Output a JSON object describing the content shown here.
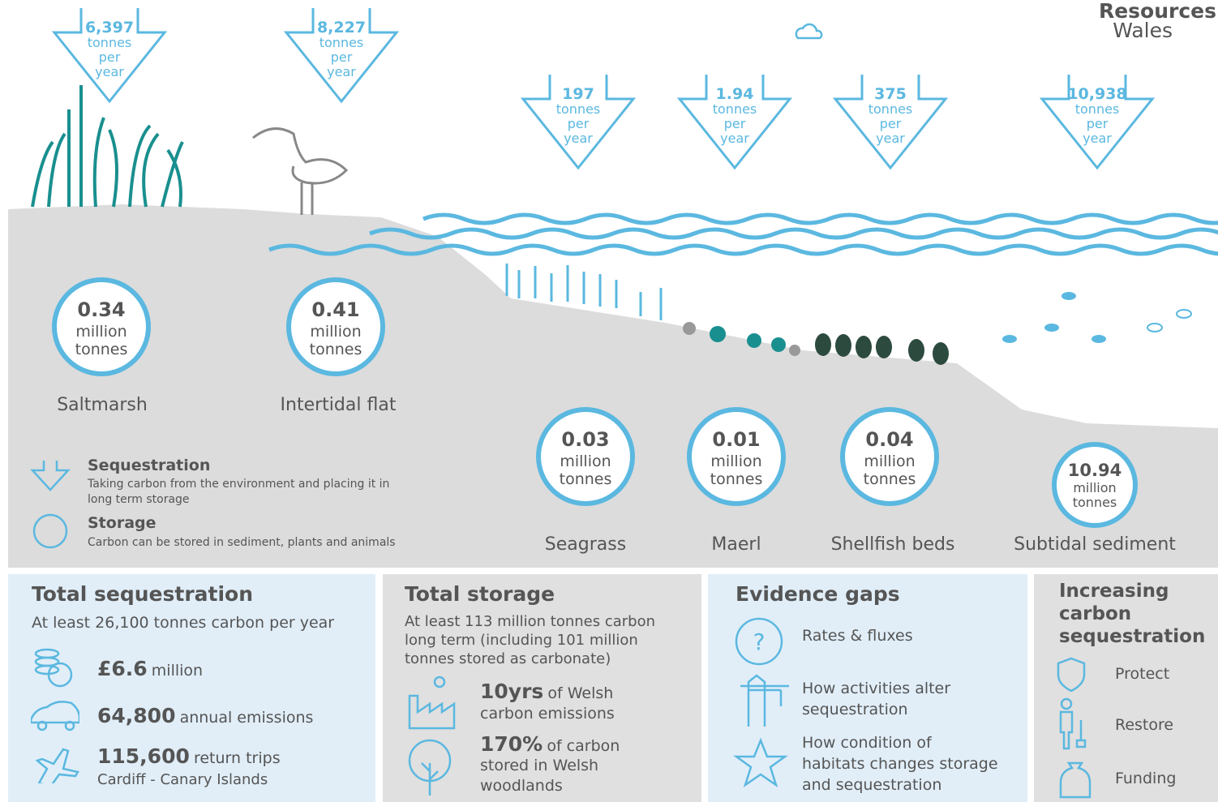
{
  "brand": {
    "line1": "Resources",
    "line2": "Wales"
  },
  "habitats": [
    {
      "name": "Saltmarsh",
      "sequestration": {
        "value": "6,397",
        "unit": [
          "tonnes",
          "per",
          "year"
        ]
      },
      "storage": {
        "value": "0.34",
        "unit": [
          "million",
          "tonnes"
        ]
      }
    },
    {
      "name": "Intertidal flat",
      "sequestration": {
        "value": "8,227",
        "unit": [
          "tonnes",
          "per",
          "year"
        ]
      },
      "storage": {
        "value": "0.41",
        "unit": [
          "million",
          "tonnes"
        ]
      }
    },
    {
      "name": "Seagrass",
      "sequestration": {
        "value": "197",
        "unit": [
          "tonnes",
          "per",
          "year"
        ]
      },
      "storage": {
        "value": "0.03",
        "unit": [
          "million",
          "tonnes"
        ]
      }
    },
    {
      "name": "Maerl",
      "sequestration": {
        "value": "1.94",
        "unit": [
          "tonnes",
          "per",
          "year"
        ]
      },
      "storage": {
        "value": "0.01",
        "unit": [
          "million",
          "tonnes"
        ]
      }
    },
    {
      "name": "Shellfish beds",
      "sequestration": {
        "value": "375",
        "unit": [
          "tonnes",
          "per",
          "year"
        ]
      },
      "storage": {
        "value": "0.04",
        "unit": [
          "million",
          "tonnes"
        ]
      }
    },
    {
      "name": "Subtidal sediment",
      "sequestration": {
        "value": "10,938",
        "unit": [
          "tonnes",
          "per",
          "year"
        ]
      },
      "storage": {
        "value": "10.94",
        "unit": [
          "million",
          "tonnes"
        ]
      }
    }
  ],
  "legend": {
    "sequestration": {
      "title": "Sequestration",
      "text": [
        "Taking carbon from the environment and placing it in",
        "long term storage"
      ]
    },
    "storage": {
      "title": "Storage",
      "text": "Carbon can be stored in sediment, plants and animals"
    }
  },
  "panels": {
    "total_sequestration": {
      "title": "Total sequestration",
      "subtitle": "At least 26,100 tonnes carbon per year",
      "items": [
        {
          "value": "£6.6",
          "text": "million"
        },
        {
          "value": "64,800",
          "text": "annual emissions"
        },
        {
          "value": "115,600",
          "text": "return trips",
          "detail": "Cardiff - Canary Islands"
        }
      ]
    },
    "total_storage": {
      "title": "Total storage",
      "subtitle": [
        "At least 113 million tonnes carbon",
        "long term (including 101 million",
        "tonnes stored as carbonate)"
      ],
      "items": [
        {
          "value": "10yrs",
          "text": "of Welsh",
          "detail": "carbon emissions"
        },
        {
          "value": "170%",
          "text": "of carbon",
          "detail": [
            "stored in Welsh",
            "woodlands"
          ]
        }
      ]
    },
    "evidence_gaps": {
      "title": "Evidence gaps",
      "items": [
        [
          "Rates & fluxes"
        ],
        [
          "How activities alter",
          "sequestration"
        ],
        [
          "How condition of",
          "habitats changes storage",
          "and sequestration"
        ]
      ]
    },
    "increasing": {
      "title": [
        "Increasing",
        "carbon",
        "sequestration"
      ],
      "items": [
        "Protect",
        "Restore",
        "Funding"
      ]
    }
  }
}
